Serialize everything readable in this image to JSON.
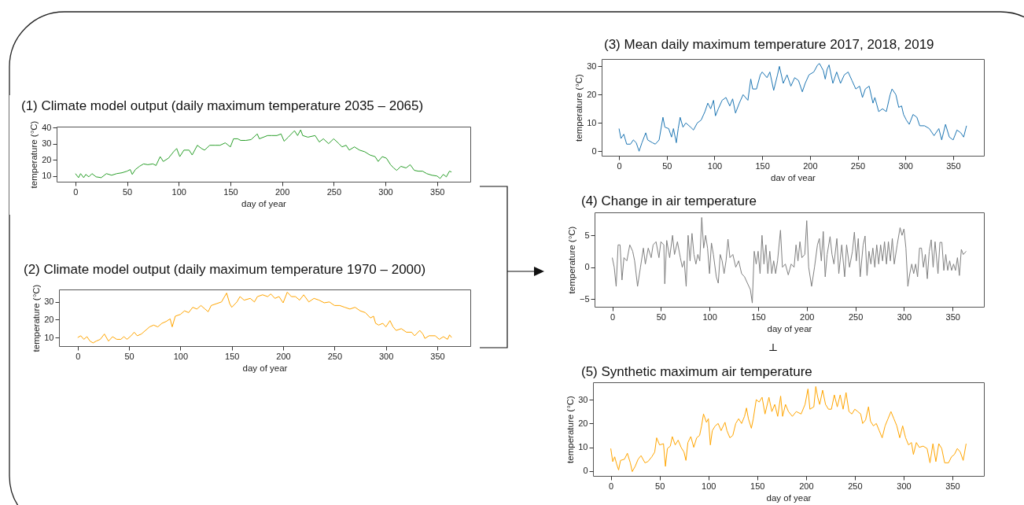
{
  "chart_data": [
    {
      "type": "line",
      "title": "(1) Climate model output (daily maximum temperature 2035 – 2065)",
      "xlabel": "day of year",
      "ylabel": "temperature (°C)",
      "xlim": [
        -18.2,
        382.2
      ],
      "xticks": [
        0,
        50,
        100,
        150,
        200,
        250,
        300,
        350
      ],
      "ylim": [
        6.5,
        40.5
      ],
      "yticks": [
        10,
        20,
        30,
        40
      ],
      "color": "#2ca02c",
      "x": [
        0,
        3,
        5,
        8,
        10,
        13,
        16,
        20,
        25,
        30,
        35,
        40,
        45,
        50,
        53,
        55,
        58,
        62,
        66,
        70,
        75,
        78,
        82,
        85,
        90,
        95,
        98,
        101,
        105,
        110,
        113,
        118,
        122,
        125,
        130,
        135,
        140,
        145,
        150,
        153,
        157,
        160,
        165,
        170,
        176,
        178,
        182,
        186,
        190,
        195,
        199,
        202,
        206,
        212,
        215,
        218,
        220,
        225,
        232,
        236,
        240,
        245,
        250,
        255,
        258,
        262,
        265,
        270,
        275,
        280,
        285,
        290,
        293,
        297,
        301,
        305,
        308,
        311,
        315,
        320,
        324,
        328,
        332,
        336,
        340,
        345,
        350,
        353,
        356,
        359,
        362,
        364
      ],
      "values": [
        11.5,
        9,
        11.5,
        9,
        11,
        9.5,
        11.5,
        9.5,
        9,
        11.5,
        10.5,
        11.5,
        12,
        13,
        14,
        11,
        14,
        16,
        17.5,
        17,
        17.5,
        16.5,
        22,
        19,
        21,
        25,
        27,
        22,
        26,
        26,
        23,
        29,
        27,
        26,
        29,
        29,
        29,
        30.5,
        28,
        33,
        33,
        32,
        32,
        32.5,
        36,
        33,
        34,
        35,
        35,
        35,
        36,
        31.5,
        34,
        38,
        35,
        38.5,
        35,
        34,
        35,
        31,
        33,
        30,
        33,
        30,
        28,
        29,
        26,
        28,
        26,
        25,
        23,
        22,
        19,
        22,
        21,
        17,
        15,
        13.5,
        16,
        15,
        17,
        13.5,
        13,
        13,
        11.5,
        10.5,
        10,
        8.5,
        11,
        9.5,
        13,
        12.5
      ]
    },
    {
      "type": "line",
      "title": "(2) Climate model output (daily maximum temperature 1970 – 2000)",
      "xlabel": "day of year",
      "ylabel": "temperature (°C)",
      "xlim": [
        -18.2,
        382.2
      ],
      "xticks": [
        0,
        50,
        100,
        150,
        200,
        250,
        300,
        350
      ],
      "ylim": [
        5.2,
        37
      ],
      "yticks": [
        10,
        20,
        30
      ],
      "color": "#ffa500",
      "x": [
        0,
        3,
        6,
        9,
        12,
        15,
        18,
        22,
        26,
        30,
        34,
        38,
        42,
        45,
        48,
        52,
        55,
        58,
        62,
        66,
        70,
        74,
        78,
        82,
        86,
        90,
        92,
        95,
        100,
        104,
        108,
        112,
        116,
        120,
        124,
        127,
        130,
        135,
        140,
        145,
        148,
        150,
        155,
        158,
        162,
        168,
        172,
        175,
        180,
        185,
        188,
        192,
        196,
        200,
        204,
        208,
        212,
        216,
        220,
        225,
        230,
        235,
        240,
        245,
        250,
        255,
        260,
        265,
        270,
        275,
        280,
        285,
        288,
        290,
        293,
        297,
        300,
        304,
        307,
        310,
        315,
        320,
        325,
        328,
        333,
        336,
        338,
        342,
        348,
        352,
        356,
        360,
        362,
        364
      ],
      "values": [
        10,
        11,
        9,
        10.5,
        8,
        7,
        8,
        9,
        12,
        8,
        10.5,
        9,
        9,
        10.5,
        9,
        11,
        13,
        11,
        12,
        14,
        16,
        17,
        16,
        18,
        19,
        20.5,
        16,
        22,
        23,
        25,
        24,
        27,
        26,
        28,
        26,
        24.5,
        28,
        29,
        30,
        35,
        29,
        27,
        30,
        33,
        31,
        32,
        30,
        33,
        34,
        33,
        34.5,
        32,
        33,
        29.5,
        35.5,
        33,
        33,
        31,
        34,
        30,
        32,
        31,
        29.5,
        30,
        28,
        28,
        27,
        26,
        27,
        25,
        24,
        21,
        22,
        18,
        17,
        18,
        16,
        19.5,
        16,
        14,
        15,
        13,
        13,
        11,
        14,
        12,
        9.5,
        11,
        11,
        9,
        10.5,
        9,
        11.5,
        10
      ]
    },
    {
      "type": "line",
      "title": "(3) Mean daily maximum temperature 2017, 2018, 2019",
      "xlabel": "day of year",
      "ylabel": "temperature (°C)",
      "xlim": [
        -18.2,
        382.2
      ],
      "xticks": [
        0,
        50,
        100,
        150,
        200,
        250,
        300,
        350
      ],
      "ylim": [
        -1.6,
        32.6
      ],
      "yticks": [
        0,
        10,
        20,
        30
      ],
      "color": "#1f77b4",
      "x": [
        0,
        2,
        5,
        8,
        12,
        15,
        18,
        21,
        24,
        28,
        30,
        35,
        38,
        42,
        46,
        48,
        52,
        55,
        57,
        60,
        62,
        64,
        67,
        70,
        75,
        78,
        82,
        86,
        90,
        93,
        96,
        99,
        101,
        104,
        108,
        112,
        116,
        119,
        122,
        126,
        130,
        135,
        138,
        140,
        144,
        148,
        150,
        155,
        158,
        162,
        166,
        168,
        172,
        176,
        180,
        184,
        188,
        192,
        195,
        199,
        204,
        208,
        210,
        214,
        216,
        218,
        220,
        224,
        228,
        232,
        236,
        240,
        244,
        248,
        252,
        255,
        258,
        262,
        266,
        268,
        272,
        276,
        280,
        284,
        286,
        290,
        293,
        296,
        298,
        301,
        304,
        308,
        312,
        315,
        320,
        325,
        330,
        335,
        338,
        342,
        346,
        350,
        354,
        358,
        361,
        364
      ],
      "values": [
        8,
        4.5,
        6,
        2.5,
        2.5,
        4,
        3,
        0,
        3,
        6.5,
        4,
        3,
        2.5,
        4,
        12,
        8.5,
        8,
        5,
        8,
        3,
        8,
        12,
        8.5,
        10,
        8.5,
        7.5,
        10,
        11,
        14,
        17,
        15,
        18,
        12.5,
        15,
        18,
        19,
        16,
        18.5,
        13.5,
        17,
        20,
        18,
        25.5,
        22,
        22,
        27,
        28,
        26,
        28,
        21.5,
        27,
        30,
        24,
        27,
        23,
        26,
        25,
        21,
        24,
        27,
        28,
        30.5,
        31,
        28.5,
        25.5,
        29,
        30.5,
        24,
        28,
        24,
        27,
        28,
        25,
        22,
        23,
        19,
        22,
        23,
        17,
        19,
        14,
        15,
        14,
        20,
        22,
        20,
        15.5,
        16,
        13,
        11,
        9.5,
        13,
        12,
        9,
        9,
        8,
        5.5,
        8,
        4,
        9.5,
        5,
        4,
        7.5,
        6.5,
        5,
        9
      ]
    },
    {
      "type": "line",
      "title": "(4) Change in air temperature",
      "xlabel": "day of year",
      "ylabel": "temperature (°C)",
      "xlim": [
        -18.2,
        382.2
      ],
      "xticks": [
        0,
        50,
        100,
        150,
        200,
        250,
        300,
        350
      ],
      "ylim": [
        -6.2,
        8.6
      ],
      "yticks": [
        -5,
        0,
        5
      ],
      "color": "#808080",
      "x": [
        0,
        2,
        4,
        6,
        8,
        10,
        12,
        15,
        18,
        21,
        23,
        26,
        29,
        32,
        34,
        37,
        40,
        42,
        45,
        48,
        50,
        53,
        54,
        56,
        59,
        62,
        64,
        67,
        70,
        72,
        74,
        76,
        78,
        80,
        82,
        84,
        86,
        88,
        90,
        92,
        94,
        96,
        98,
        100,
        102,
        104,
        107,
        109,
        111,
        113,
        115,
        117,
        119,
        121,
        124,
        127,
        130,
        133,
        136,
        139,
        142,
        144,
        146,
        148,
        150,
        152,
        154,
        156,
        158,
        160,
        162,
        164,
        166,
        168,
        170,
        173,
        175,
        178,
        181,
        184,
        187,
        189,
        191,
        193,
        195,
        198,
        200,
        202,
        205,
        208,
        211,
        213,
        215,
        217,
        219,
        221,
        224,
        226,
        228,
        231,
        233,
        236,
        239,
        241,
        244,
        247,
        249,
        251,
        253,
        255,
        258,
        260,
        262,
        264,
        266,
        268,
        270,
        272,
        274,
        276,
        278,
        280,
        282,
        284,
        286,
        288,
        290,
        293,
        296,
        298,
        300,
        302,
        304,
        306,
        308,
        310,
        312,
        314,
        316,
        318,
        320,
        322,
        324,
        326,
        328,
        330,
        332,
        335,
        337,
        339,
        341,
        343,
        345,
        347,
        349,
        351,
        353,
        355,
        357,
        359,
        361,
        364
      ],
      "values": [
        1.5,
        0,
        -3,
        3.5,
        3.5,
        -2,
        1.5,
        1,
        3.5,
        2.5,
        1,
        -3,
        0,
        3,
        0.5,
        3,
        1.5,
        3.5,
        4,
        1.5,
        4,
        3.5,
        -2.6,
        4.2,
        1.5,
        5,
        2,
        4,
        1.5,
        0,
        1,
        -3,
        5,
        1,
        5.3,
        2,
        0.5,
        2,
        1,
        7.8,
        3,
        5,
        3,
        -1,
        3.8,
        2,
        -1.5,
        -2.5,
        2,
        1,
        -1,
        1,
        4.4,
        1.5,
        2,
        0,
        1,
        -1,
        -1.5,
        -2.5,
        -3.5,
        -5.6,
        2.5,
        0.5,
        2.5,
        -1,
        5,
        0.5,
        3.5,
        -1,
        2.5,
        -1,
        1,
        -1,
        1,
        5.8,
        0,
        0.5,
        -1.2,
        0.5,
        0,
        3.5,
        1,
        4,
        1.5,
        2,
        7.3,
        0,
        -3,
        0,
        3.5,
        4.5,
        1,
        5.6,
        -1.5,
        2,
        4.8,
        2,
        0.5,
        4.5,
        -1,
        3.5,
        -1.5,
        3.5,
        0,
        2.5,
        5.5,
        1,
        4.5,
        -1.5,
        3.5,
        4.9,
        -1.3,
        2.5,
        0.5,
        3,
        0,
        3.5,
        0.5,
        3.5,
        1,
        4,
        0.5,
        4,
        1,
        4.5,
        0.5,
        3.5,
        6.2,
        5,
        6,
        3,
        -3,
        -1,
        0.5,
        -1,
        0.5,
        -1.5,
        3,
        3,
        0,
        2,
        -1.8,
        2.5,
        4.3,
        0,
        4,
        -1,
        3.9,
        3.9,
        -0.5,
        2,
        -0.5,
        1,
        -0.5,
        0.5,
        -0.5,
        1.5,
        -1.3,
        2.8,
        2,
        2.5
      ]
    },
    {
      "type": "line",
      "title": "(5) Synthetic maximum air temperature",
      "xlabel": "day of year",
      "ylabel": "temperature (°C)",
      "xlim": [
        -18.2,
        382.2
      ],
      "xticks": [
        0,
        50,
        100,
        150,
        200,
        250,
        300,
        350
      ],
      "ylim": [
        -2,
        37.3
      ],
      "yticks": [
        0,
        10,
        20,
        30
      ],
      "color": "#ffa500",
      "x": [
        0,
        2,
        4,
        6,
        8,
        10,
        14,
        17,
        20,
        22,
        25,
        28,
        31,
        35,
        38,
        42,
        45,
        47,
        50,
        54,
        56,
        58,
        61,
        63,
        66,
        69,
        72,
        75,
        77,
        79,
        82,
        85,
        88,
        91,
        93,
        95,
        98,
        100,
        102,
        104,
        107,
        110,
        113,
        117,
        119,
        122,
        125,
        128,
        131,
        134,
        137,
        139,
        141,
        144,
        146,
        149,
        152,
        155,
        158,
        162,
        165,
        168,
        171,
        174,
        176,
        179,
        182,
        186,
        190,
        195,
        199,
        202,
        204,
        208,
        210,
        212,
        214,
        217,
        220,
        223,
        226,
        229,
        232,
        235,
        238,
        241,
        244,
        247,
        250,
        253,
        256,
        258,
        261,
        264,
        266,
        269,
        272,
        275,
        278,
        281,
        284,
        287,
        290,
        293,
        296,
        299,
        302,
        305,
        308,
        310,
        313,
        316,
        320,
        324,
        327,
        330,
        333,
        336,
        339,
        342,
        346,
        349,
        352,
        355,
        358,
        361,
        364
      ],
      "values": [
        9.5,
        4,
        6,
        3,
        0.5,
        4.5,
        5,
        7.5,
        3.5,
        -0.2,
        2,
        5,
        6.5,
        3.5,
        4,
        6,
        8,
        14,
        11,
        11.5,
        2,
        9.5,
        10.5,
        14.5,
        11,
        13,
        10,
        8,
        4.5,
        12,
        14.5,
        10,
        14,
        15,
        19,
        24,
        20.5,
        22,
        11,
        17,
        19,
        20,
        17,
        20.5,
        17,
        14,
        15,
        20,
        22,
        20,
        23,
        26.5,
        22,
        18,
        22,
        30,
        29,
        31,
        24,
        31,
        25,
        28,
        23,
        31.5,
        23,
        28,
        25,
        23,
        25,
        24,
        28,
        34.5,
        26,
        27,
        35.5,
        31,
        28,
        34,
        28,
        26,
        26,
        32,
        27,
        32,
        26,
        33,
        25,
        24,
        26,
        25,
        24,
        20,
        21.5,
        27,
        21,
        19,
        20,
        17,
        14,
        19,
        22,
        25,
        22,
        19,
        14,
        19,
        14,
        11,
        12,
        7,
        12,
        10,
        10.5,
        9.5,
        3.5,
        11.5,
        4,
        11.5,
        9.5,
        3.5,
        3.5,
        6,
        7,
        9.5,
        8,
        4.5,
        11.5
      ]
    }
  ]
}
